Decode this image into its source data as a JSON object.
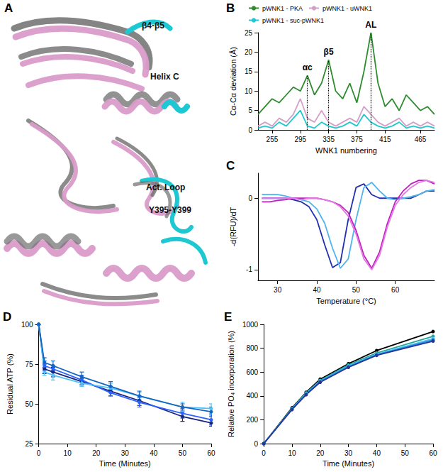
{
  "structure_panel": {
    "panel_label": "A",
    "labels": [
      "β4-β5",
      "Helix C",
      "Act. Loop",
      "Y395-Y399"
    ]
  },
  "chart_data": [
    {
      "panel_label": "B",
      "type": "line",
      "y_label": "Cα-Cα deviation (Å)",
      "x_label": "WNK1 numbering",
      "x": [
        235,
        245,
        255,
        265,
        275,
        285,
        295,
        305,
        315,
        325,
        335,
        345,
        355,
        365,
        375,
        385,
        395,
        405,
        415,
        425,
        435,
        445,
        455,
        465,
        475,
        485
      ],
      "series": [
        {
          "name": "pWNK1 - PKA",
          "color": "#2e8b2e",
          "marker": "none",
          "line_style": "solid",
          "values": [
            4,
            6,
            8,
            7,
            9,
            11,
            10,
            14,
            9,
            12,
            18,
            10,
            8,
            12,
            7,
            15,
            25,
            12,
            6,
            8,
            5,
            9,
            7,
            5,
            6,
            4
          ]
        },
        {
          "name": "pWNK1 - uWNK1",
          "color": "#d4a0c8",
          "marker": "none",
          "line_style": "solid",
          "values": [
            1,
            2,
            1,
            3,
            2,
            4,
            8,
            3,
            2,
            5,
            2,
            1,
            2,
            3,
            2,
            6,
            4,
            2,
            1,
            2,
            3,
            1,
            2,
            1,
            2,
            1
          ]
        },
        {
          "name": "pWNK1 - suc-pWNK1",
          "color": "#22c8d0",
          "marker": "none",
          "line_style": "solid",
          "values": [
            0.5,
            1,
            0.5,
            2,
            1,
            3,
            5,
            1,
            0.5,
            2,
            1,
            0.5,
            1,
            2,
            1,
            4,
            2,
            1,
            0.5,
            1,
            2,
            0.5,
            1,
            0.5,
            1,
            0.5
          ]
        }
      ],
      "annotations": [
        {
          "text": "αc",
          "x": 305,
          "y": 14
        },
        {
          "text": "β5",
          "x": 335,
          "y": 18
        },
        {
          "text": "AL",
          "x": 395,
          "y": 25
        }
      ],
      "xlim": [
        235,
        485
      ],
      "xticks": [
        255,
        295,
        335,
        375,
        415,
        465
      ],
      "ylim": [
        0,
        25
      ],
      "yticks": [
        0,
        5,
        10,
        15,
        20,
        25
      ],
      "legend": "top",
      "grid": false
    },
    {
      "panel_label": "C",
      "type": "line",
      "y_label": "-d(RFU)/dT",
      "x_label": "Temperature (°C)",
      "x": [
        26,
        28,
        30,
        32,
        34,
        36,
        38,
        40,
        42,
        44,
        46,
        48,
        50,
        52,
        54,
        56,
        58,
        60,
        62,
        64,
        66,
        68,
        70
      ],
      "series": [
        {
          "color": "#1f2fb0",
          "marker": "none",
          "line_style": "solid",
          "values": [
            0,
            0,
            0,
            0,
            -0.02,
            -0.05,
            -0.12,
            -0.3,
            -0.65,
            -0.97,
            -0.9,
            -0.3,
            0.15,
            0.2,
            0.05,
            0,
            0,
            0,
            0,
            0,
            0.05,
            0.1,
            0.1
          ]
        },
        {
          "color": "#4fb3ee",
          "marker": "none",
          "line_style": "solid",
          "values": [
            0.05,
            0.05,
            0.05,
            0.03,
            0,
            -0.02,
            -0.05,
            -0.15,
            -0.35,
            -0.7,
            -0.98,
            -0.85,
            -0.3,
            0.15,
            0.22,
            0.1,
            0,
            -0.02,
            0,
            0.02,
            0.05,
            0.1,
            0.12
          ]
        },
        {
          "color": "#c020c0",
          "marker": "none",
          "line_style": "solid",
          "values": [
            -0.05,
            -0.05,
            -0.03,
            -0.02,
            0,
            0,
            0,
            0,
            -0.02,
            -0.05,
            -0.1,
            -0.2,
            -0.45,
            -0.8,
            -0.98,
            -0.75,
            -0.35,
            -0.05,
            0.1,
            0.2,
            0.25,
            0.25,
            0.2
          ]
        },
        {
          "color": "#e27ae2",
          "marker": "none",
          "line_style": "solid",
          "values": [
            0,
            0,
            0,
            0,
            0,
            -0.02,
            0,
            0,
            -0.02,
            -0.05,
            -0.12,
            -0.25,
            -0.5,
            -0.85,
            -1.0,
            -0.8,
            -0.4,
            -0.1,
            0.05,
            0.15,
            0.22,
            0.25,
            0.22
          ]
        }
      ],
      "xlim": [
        25,
        70
      ],
      "xticks": [
        30,
        40,
        50,
        60
      ],
      "ylim": [
        -1.15,
        0.35
      ],
      "yticks": [
        -1,
        0
      ],
      "grid": false
    },
    {
      "panel_label": "D",
      "type": "line",
      "y_label": "Residual ATP (%)",
      "x_label": "Time (Minutes)",
      "x": [
        0,
        2,
        5,
        15,
        25,
        35,
        50,
        60
      ],
      "series": [
        {
          "color": "#1a237e",
          "marker": "circle",
          "line_style": "solid",
          "values": [
            100,
            72,
            70,
            64,
            58,
            52,
            42,
            38
          ],
          "errors": [
            0,
            3,
            3,
            2,
            3,
            3,
            3,
            2
          ]
        },
        {
          "color": "#2962ff",
          "marker": "circle",
          "line_style": "solid",
          "values": [
            100,
            74,
            72,
            65,
            57,
            51,
            44,
            40
          ],
          "errors": [
            0,
            3,
            2,
            3,
            2,
            3,
            3,
            3
          ]
        },
        {
          "color": "#4fc3f7",
          "marker": "circle",
          "line_style": "solid",
          "values": [
            100,
            70,
            68,
            63,
            60,
            55,
            48,
            47
          ],
          "errors": [
            0,
            2,
            3,
            2,
            3,
            2,
            3,
            3
          ]
        },
        {
          "color": "#1565c0",
          "marker": "circle",
          "line_style": "solid",
          "values": [
            100,
            76,
            74,
            67,
            61,
            55,
            48,
            45
          ],
          "errors": [
            0,
            3,
            3,
            3,
            3,
            3,
            2,
            3
          ]
        }
      ],
      "xlim": [
        0,
        60
      ],
      "xticks": [
        0,
        10,
        20,
        30,
        40,
        50,
        60
      ],
      "ylim": [
        25,
        100
      ],
      "yticks": [
        25,
        50,
        75,
        100
      ],
      "grid": false
    },
    {
      "panel_label": "E",
      "type": "line",
      "y_label": "Relative PO₄ incorporation (%)",
      "x_label": "Time (Minutes)",
      "x": [
        0,
        10,
        15,
        20,
        30,
        40,
        60
      ],
      "series": [
        {
          "color": "#000000",
          "marker": "circle",
          "line_style": "solid",
          "values": [
            0,
            300,
            430,
            540,
            670,
            780,
            940
          ]
        },
        {
          "color": "#26a69a",
          "marker": "circle",
          "line_style": "solid",
          "values": [
            0,
            295,
            425,
            530,
            660,
            760,
            900
          ]
        },
        {
          "color": "#4fc3f7",
          "marker": "circle",
          "line_style": "solid",
          "values": [
            0,
            290,
            420,
            525,
            650,
            750,
            880
          ]
        },
        {
          "color": "#1e88e5",
          "marker": "circle",
          "line_style": "solid",
          "values": [
            0,
            290,
            415,
            520,
            645,
            745,
            870
          ]
        },
        {
          "color": "#283593",
          "marker": "circle",
          "line_style": "solid",
          "values": [
            0,
            285,
            410,
            515,
            640,
            740,
            860
          ]
        }
      ],
      "xlim": [
        0,
        60
      ],
      "xticks": [
        0,
        10,
        20,
        30,
        40,
        50,
        60
      ],
      "ylim": [
        0,
        1000
      ],
      "yticks": [
        0,
        200,
        400,
        600,
        800,
        1000
      ],
      "grid": false
    }
  ]
}
